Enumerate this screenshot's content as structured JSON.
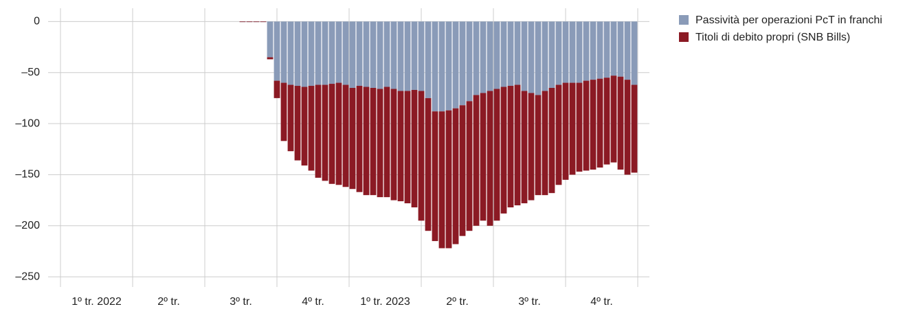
{
  "chart_data": {
    "type": "bar",
    "stacked": true,
    "quarters": [
      "1º tr. 2022",
      "2º tr.",
      "3º tr.",
      "4º tr.",
      "1º tr. 2023",
      "2º tr.",
      "3º tr.",
      "4º tr."
    ],
    "categories": [
      null,
      null,
      null,
      null,
      null,
      null,
      null,
      null,
      null,
      null,
      null,
      null,
      null,
      null,
      null,
      null,
      null,
      null,
      null,
      null,
      null,
      null,
      null,
      null,
      null,
      null,
      null,
      null,
      null,
      null,
      null,
      null,
      null,
      null,
      null,
      null,
      null,
      null,
      null,
      null,
      null,
      null,
      null,
      null,
      null,
      null,
      null,
      null,
      null,
      null,
      null,
      null,
      null,
      null,
      null,
      null,
      null,
      null,
      null,
      null,
      null,
      null,
      null,
      null,
      null,
      null,
      null,
      null,
      null,
      null,
      null,
      null,
      null,
      null,
      null,
      null,
      null,
      null,
      null,
      null,
      null,
      null,
      null,
      null
    ],
    "series": [
      {
        "name": "Passività per operazioni PcT in franchi",
        "color": "#8a9bb8",
        "values": [
          null,
          null,
          null,
          null,
          null,
          null,
          null,
          null,
          null,
          null,
          null,
          null,
          null,
          null,
          null,
          null,
          null,
          null,
          null,
          null,
          null,
          null,
          null,
          null,
          null,
          null,
          0,
          0,
          0,
          0,
          -35,
          -58,
          -60,
          -62,
          -63,
          -64,
          -63,
          -62,
          -62,
          -61,
          -60,
          -62,
          -65,
          -63,
          -64,
          -65,
          -66,
          -64,
          -66,
          -68,
          -68,
          -67,
          -68,
          -75,
          -88,
          -88,
          -87,
          -85,
          -82,
          -78,
          -72,
          -70,
          -68,
          -66,
          -64,
          -63,
          -62,
          -68,
          -70,
          -72,
          -68,
          -65,
          -62,
          -60,
          -60,
          -60,
          -58,
          -57,
          -56,
          -55,
          -53,
          -54,
          -57,
          -62
        ]
      },
      {
        "name": "Titoli di debito propri (SNB Bills)",
        "color": "#8b1a24",
        "values": [
          null,
          null,
          null,
          null,
          null,
          null,
          null,
          null,
          null,
          null,
          null,
          null,
          null,
          null,
          null,
          null,
          null,
          null,
          null,
          null,
          null,
          null,
          null,
          null,
          null,
          null,
          -0.5,
          -0.5,
          -0.5,
          -0.5,
          -2,
          -17,
          -57,
          -65,
          -73,
          -77,
          -83,
          -91,
          -94,
          -98,
          -100,
          -100,
          -99,
          -104,
          -106,
          -105,
          -106,
          -108,
          -109,
          -108,
          -110,
          -115,
          -127,
          -130,
          -127,
          -134,
          -135,
          -133,
          -128,
          -127,
          -128,
          -125,
          -132,
          -129,
          -124,
          -119,
          -118,
          -110,
          -105,
          -98,
          -102,
          -103,
          -98,
          -95,
          -90,
          -87,
          -88,
          -88,
          -87,
          -85,
          -85,
          -91,
          -93,
          -86
        ]
      }
    ],
    "ylim": [
      -260,
      13
    ],
    "yticks": [
      0,
      {
        "value": -50,
        "label": "–50"
      },
      {
        "value": -100,
        "label": "–100"
      },
      {
        "value": -150,
        "label": "–150"
      },
      {
        "value": -200,
        "label": "–200"
      },
      {
        "value": -250,
        "label": "–250"
      }
    ],
    "grid": true
  }
}
